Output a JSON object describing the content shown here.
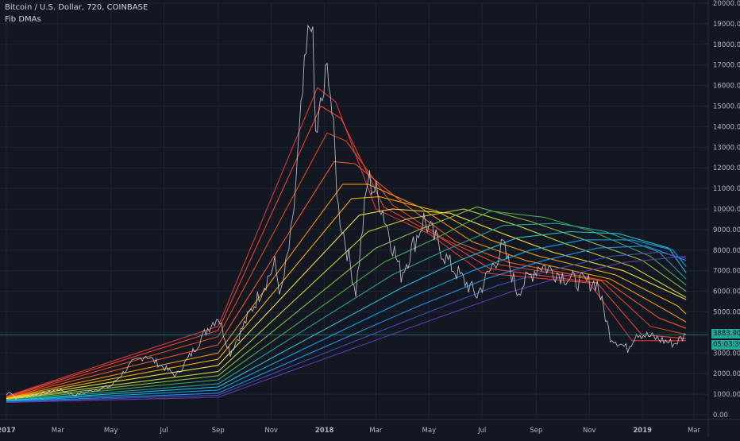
{
  "header": {
    "symbol": "Bitcoin / U.S. Dollar, 720, COINBASE",
    "indicator": "Fib DMAs"
  },
  "price_badges": {
    "last_price": "3883.90",
    "countdown": "05:03:39",
    "color": "#26a69a"
  },
  "chart_data": {
    "type": "line",
    "title": "Bitcoin / U.S. Dollar, 720, COINBASE",
    "legend": "Fib DMAs",
    "x_axis": {
      "ticks": [
        "2017",
        "Mar",
        "May",
        "Jul",
        "Sep",
        "Nov",
        "2018",
        "Mar",
        "May",
        "Jul",
        "Sep",
        "Nov",
        "2019",
        "Mar"
      ],
      "range": [
        "2017-01-01",
        "2019-03-01"
      ]
    },
    "y_axis": {
      "ticks": [
        "0.00",
        "1000.00",
        "2000.00",
        "3000.00",
        "4000.00",
        "5000.00",
        "6000.00",
        "7000.00",
        "8000.00",
        "9000.00",
        "10000.00",
        "11000.00",
        "12000.00",
        "13000.00",
        "14000.00",
        "15000.00",
        "16000.00",
        "17000.00",
        "18000.00",
        "19000.00",
        "20000.00"
      ],
      "ylim": [
        0,
        20000
      ],
      "position": "right"
    },
    "grid": true,
    "price_series": {
      "name": "BTCUSD",
      "color": "#d1d4dc",
      "points": [
        [
          "2017-01-01",
          960
        ],
        [
          "2017-01-05",
          1150
        ],
        [
          "2017-01-12",
          800
        ],
        [
          "2017-01-25",
          900
        ],
        [
          "2017-02-15",
          1050
        ],
        [
          "2017-03-01",
          1250
        ],
        [
          "2017-03-20",
          960
        ],
        [
          "2017-04-10",
          1180
        ],
        [
          "2017-05-01",
          1400
        ],
        [
          "2017-05-25",
          2500
        ],
        [
          "2017-06-10",
          2900
        ],
        [
          "2017-06-20",
          2600
        ],
        [
          "2017-07-15",
          1900
        ],
        [
          "2017-08-05",
          3200
        ],
        [
          "2017-08-20",
          4200
        ],
        [
          "2017-09-01",
          4800
        ],
        [
          "2017-09-15",
          3000
        ],
        [
          "2017-10-01",
          4400
        ],
        [
          "2017-10-20",
          6000
        ],
        [
          "2017-11-05",
          7300
        ],
        [
          "2017-11-12",
          5800
        ],
        [
          "2017-11-25",
          9000
        ],
        [
          "2017-12-07",
          15500
        ],
        [
          "2017-12-17",
          19800
        ],
        [
          "2017-12-22",
          13500
        ],
        [
          "2018-01-06",
          17000
        ],
        [
          "2018-01-17",
          10000
        ],
        [
          "2018-02-06",
          6000
        ],
        [
          "2018-02-20",
          11500
        ],
        [
          "2018-03-05",
          10500
        ],
        [
          "2018-03-30",
          6800
        ],
        [
          "2018-04-25",
          9500
        ],
        [
          "2018-05-25",
          7300
        ],
        [
          "2018-06-25",
          5800
        ],
        [
          "2018-07-25",
          8200
        ],
        [
          "2018-08-10",
          6000
        ],
        [
          "2018-09-05",
          7300
        ],
        [
          "2018-10-15",
          6500
        ],
        [
          "2018-11-10",
          6400
        ],
        [
          "2018-11-25",
          3800
        ],
        [
          "2018-12-15",
          3200
        ],
        [
          "2018-12-25",
          4000
        ],
        [
          "2019-01-10",
          3800
        ],
        [
          "2019-02-06",
          3450
        ],
        [
          "2019-02-20",
          3883
        ]
      ]
    },
    "series": [
      {
        "color": "#e53935",
        "points": [
          [
            "2017-01-01",
            900
          ],
          [
            "2017-09-01",
            4300
          ],
          [
            "2017-12-24",
            15900
          ],
          [
            "2018-01-14",
            15200
          ],
          [
            "2018-03-01",
            10000
          ],
          [
            "2018-05-01",
            8800
          ],
          [
            "2018-07-01",
            6900
          ],
          [
            "2018-11-01",
            6400
          ],
          [
            "2018-12-20",
            3600
          ],
          [
            "2019-02-20",
            3600
          ]
        ]
      },
      {
        "color": "#f44336",
        "points": [
          [
            "2017-01-01",
            880
          ],
          [
            "2017-09-01",
            4100
          ],
          [
            "2017-12-28",
            15000
          ],
          [
            "2018-01-20",
            14400
          ],
          [
            "2018-03-10",
            10100
          ],
          [
            "2018-05-10",
            8700
          ],
          [
            "2018-07-10",
            7100
          ],
          [
            "2018-11-10",
            6400
          ],
          [
            "2018-12-31",
            3900
          ],
          [
            "2019-02-20",
            3700
          ]
        ]
      },
      {
        "color": "#e64a19",
        "points": [
          [
            "2017-01-01",
            860
          ],
          [
            "2017-09-01",
            3800
          ],
          [
            "2018-01-04",
            13700
          ],
          [
            "2018-01-26",
            13300
          ],
          [
            "2018-03-20",
            10200
          ],
          [
            "2018-05-20",
            8500
          ],
          [
            "2018-07-20",
            7300
          ],
          [
            "2018-11-15",
            6500
          ],
          [
            "2019-01-10",
            4300
          ],
          [
            "2019-02-20",
            3900
          ]
        ]
      },
      {
        "color": "#ff5722",
        "points": [
          [
            "2017-01-01",
            840
          ],
          [
            "2017-09-01",
            3400
          ],
          [
            "2018-01-12",
            12300
          ],
          [
            "2018-02-05",
            12200
          ],
          [
            "2018-04-01",
            10300
          ],
          [
            "2018-06-01",
            8400
          ],
          [
            "2018-08-01",
            7400
          ],
          [
            "2018-11-20",
            6500
          ],
          [
            "2019-01-20",
            4700
          ],
          [
            "2019-02-20",
            4200
          ]
        ]
      },
      {
        "color": "#ff9800",
        "points": [
          [
            "2017-01-01",
            820
          ],
          [
            "2017-09-01",
            3000
          ],
          [
            "2018-01-22",
            11200
          ],
          [
            "2018-02-20",
            11200
          ],
          [
            "2018-04-20",
            10100
          ],
          [
            "2018-06-20",
            8400
          ],
          [
            "2018-08-20",
            7500
          ],
          [
            "2018-11-25",
            6600
          ],
          [
            "2019-01-31",
            5000
          ],
          [
            "2019-02-20",
            4500
          ]
        ]
      },
      {
        "color": "#ffb300",
        "points": [
          [
            "2017-01-01",
            800
          ],
          [
            "2017-09-01",
            2700
          ],
          [
            "2018-02-01",
            10500
          ],
          [
            "2018-03-05",
            10600
          ],
          [
            "2018-05-10",
            9900
          ],
          [
            "2018-07-10",
            8500
          ],
          [
            "2018-09-05",
            7700
          ],
          [
            "2018-12-01",
            6800
          ],
          [
            "2019-02-10",
            5300
          ],
          [
            "2019-02-20",
            4900
          ]
        ]
      },
      {
        "color": "#ffeb3b",
        "points": [
          [
            "2017-01-01",
            780
          ],
          [
            "2017-09-01",
            2400
          ],
          [
            "2018-02-10",
            9700
          ],
          [
            "2018-03-20",
            10000
          ],
          [
            "2018-05-25",
            9800
          ],
          [
            "2018-07-25",
            8800
          ],
          [
            "2018-09-20",
            7900
          ],
          [
            "2018-12-10",
            7000
          ],
          [
            "2019-02-20",
            5600
          ]
        ]
      },
      {
        "color": "#cddc39",
        "points": [
          [
            "2017-01-01",
            760
          ],
          [
            "2017-09-01",
            2100
          ],
          [
            "2018-02-20",
            8900
          ],
          [
            "2018-04-05",
            9500
          ],
          [
            "2018-06-10",
            10000
          ],
          [
            "2018-08-10",
            9200
          ],
          [
            "2018-10-05",
            8300
          ],
          [
            "2018-12-20",
            7200
          ],
          [
            "2019-02-20",
            5700
          ]
        ]
      },
      {
        "color": "#8bc34a",
        "points": [
          [
            "2017-01-01",
            740
          ],
          [
            "2017-09-01",
            1900
          ],
          [
            "2018-03-01",
            8100
          ],
          [
            "2018-04-20",
            9000
          ],
          [
            "2018-06-25",
            10100
          ],
          [
            "2018-08-25",
            9400
          ],
          [
            "2018-10-20",
            8600
          ],
          [
            "2019-01-01",
            7500
          ],
          [
            "2019-02-20",
            6000
          ]
        ]
      },
      {
        "color": "#4caf50",
        "points": [
          [
            "2017-01-01",
            720
          ],
          [
            "2017-09-01",
            1700
          ],
          [
            "2018-03-10",
            7400
          ],
          [
            "2018-05-05",
            8500
          ],
          [
            "2018-07-10",
            9900
          ],
          [
            "2018-09-10",
            9600
          ],
          [
            "2018-11-05",
            8900
          ],
          [
            "2019-01-10",
            7700
          ],
          [
            "2019-02-20",
            6300
          ]
        ]
      },
      {
        "color": "#26a69a",
        "points": [
          [
            "2017-01-01",
            700
          ],
          [
            "2017-09-01",
            1500
          ],
          [
            "2018-03-20",
            6800
          ],
          [
            "2018-05-20",
            8000
          ],
          [
            "2018-07-25",
            9200
          ],
          [
            "2018-09-25",
            9300
          ],
          [
            "2018-11-20",
            8900
          ],
          [
            "2019-01-20",
            7900
          ],
          [
            "2019-02-20",
            6600
          ]
        ]
      },
      {
        "color": "#26c6da",
        "points": [
          [
            "2017-01-01",
            680
          ],
          [
            "2017-09-01",
            1350
          ],
          [
            "2018-04-01",
            6200
          ],
          [
            "2018-06-05",
            7500
          ],
          [
            "2018-08-10",
            8600
          ],
          [
            "2018-10-10",
            8900
          ],
          [
            "2018-12-05",
            8800
          ],
          [
            "2019-01-31",
            8100
          ],
          [
            "2019-02-20",
            6900
          ]
        ]
      },
      {
        "color": "#03a9f4",
        "points": [
          [
            "2017-01-01",
            660
          ],
          [
            "2017-09-01",
            1200
          ],
          [
            "2018-04-10",
            5700
          ],
          [
            "2018-06-20",
            7000
          ],
          [
            "2018-08-25",
            8000
          ],
          [
            "2018-10-25",
            8500
          ],
          [
            "2018-12-20",
            8500
          ],
          [
            "2019-02-05",
            8000
          ],
          [
            "2019-02-20",
            7200
          ]
        ]
      },
      {
        "color": "#2196f3",
        "points": [
          [
            "2017-01-01",
            640
          ],
          [
            "2017-09-01",
            1050
          ],
          [
            "2018-04-20",
            5300
          ],
          [
            "2018-07-05",
            6600
          ],
          [
            "2018-09-10",
            7500
          ],
          [
            "2018-11-10",
            8100
          ],
          [
            "2019-01-05",
            8200
          ],
          [
            "2019-02-20",
            7500
          ]
        ]
      },
      {
        "color": "#3f51b5",
        "points": [
          [
            "2017-01-01",
            620
          ],
          [
            "2017-09-01",
            950
          ],
          [
            "2018-05-01",
            5000
          ],
          [
            "2018-07-20",
            6300
          ],
          [
            "2018-09-25",
            7100
          ],
          [
            "2018-11-25",
            7700
          ],
          [
            "2019-01-20",
            7900
          ],
          [
            "2019-02-20",
            7600
          ]
        ]
      },
      {
        "color": "#673ab7",
        "points": [
          [
            "2017-01-01",
            600
          ],
          [
            "2017-09-01",
            850
          ],
          [
            "2018-05-10",
            4700
          ],
          [
            "2018-08-05",
            6000
          ],
          [
            "2018-10-10",
            6800
          ],
          [
            "2018-12-10",
            7400
          ],
          [
            "2019-02-20",
            7700
          ]
        ]
      }
    ]
  }
}
